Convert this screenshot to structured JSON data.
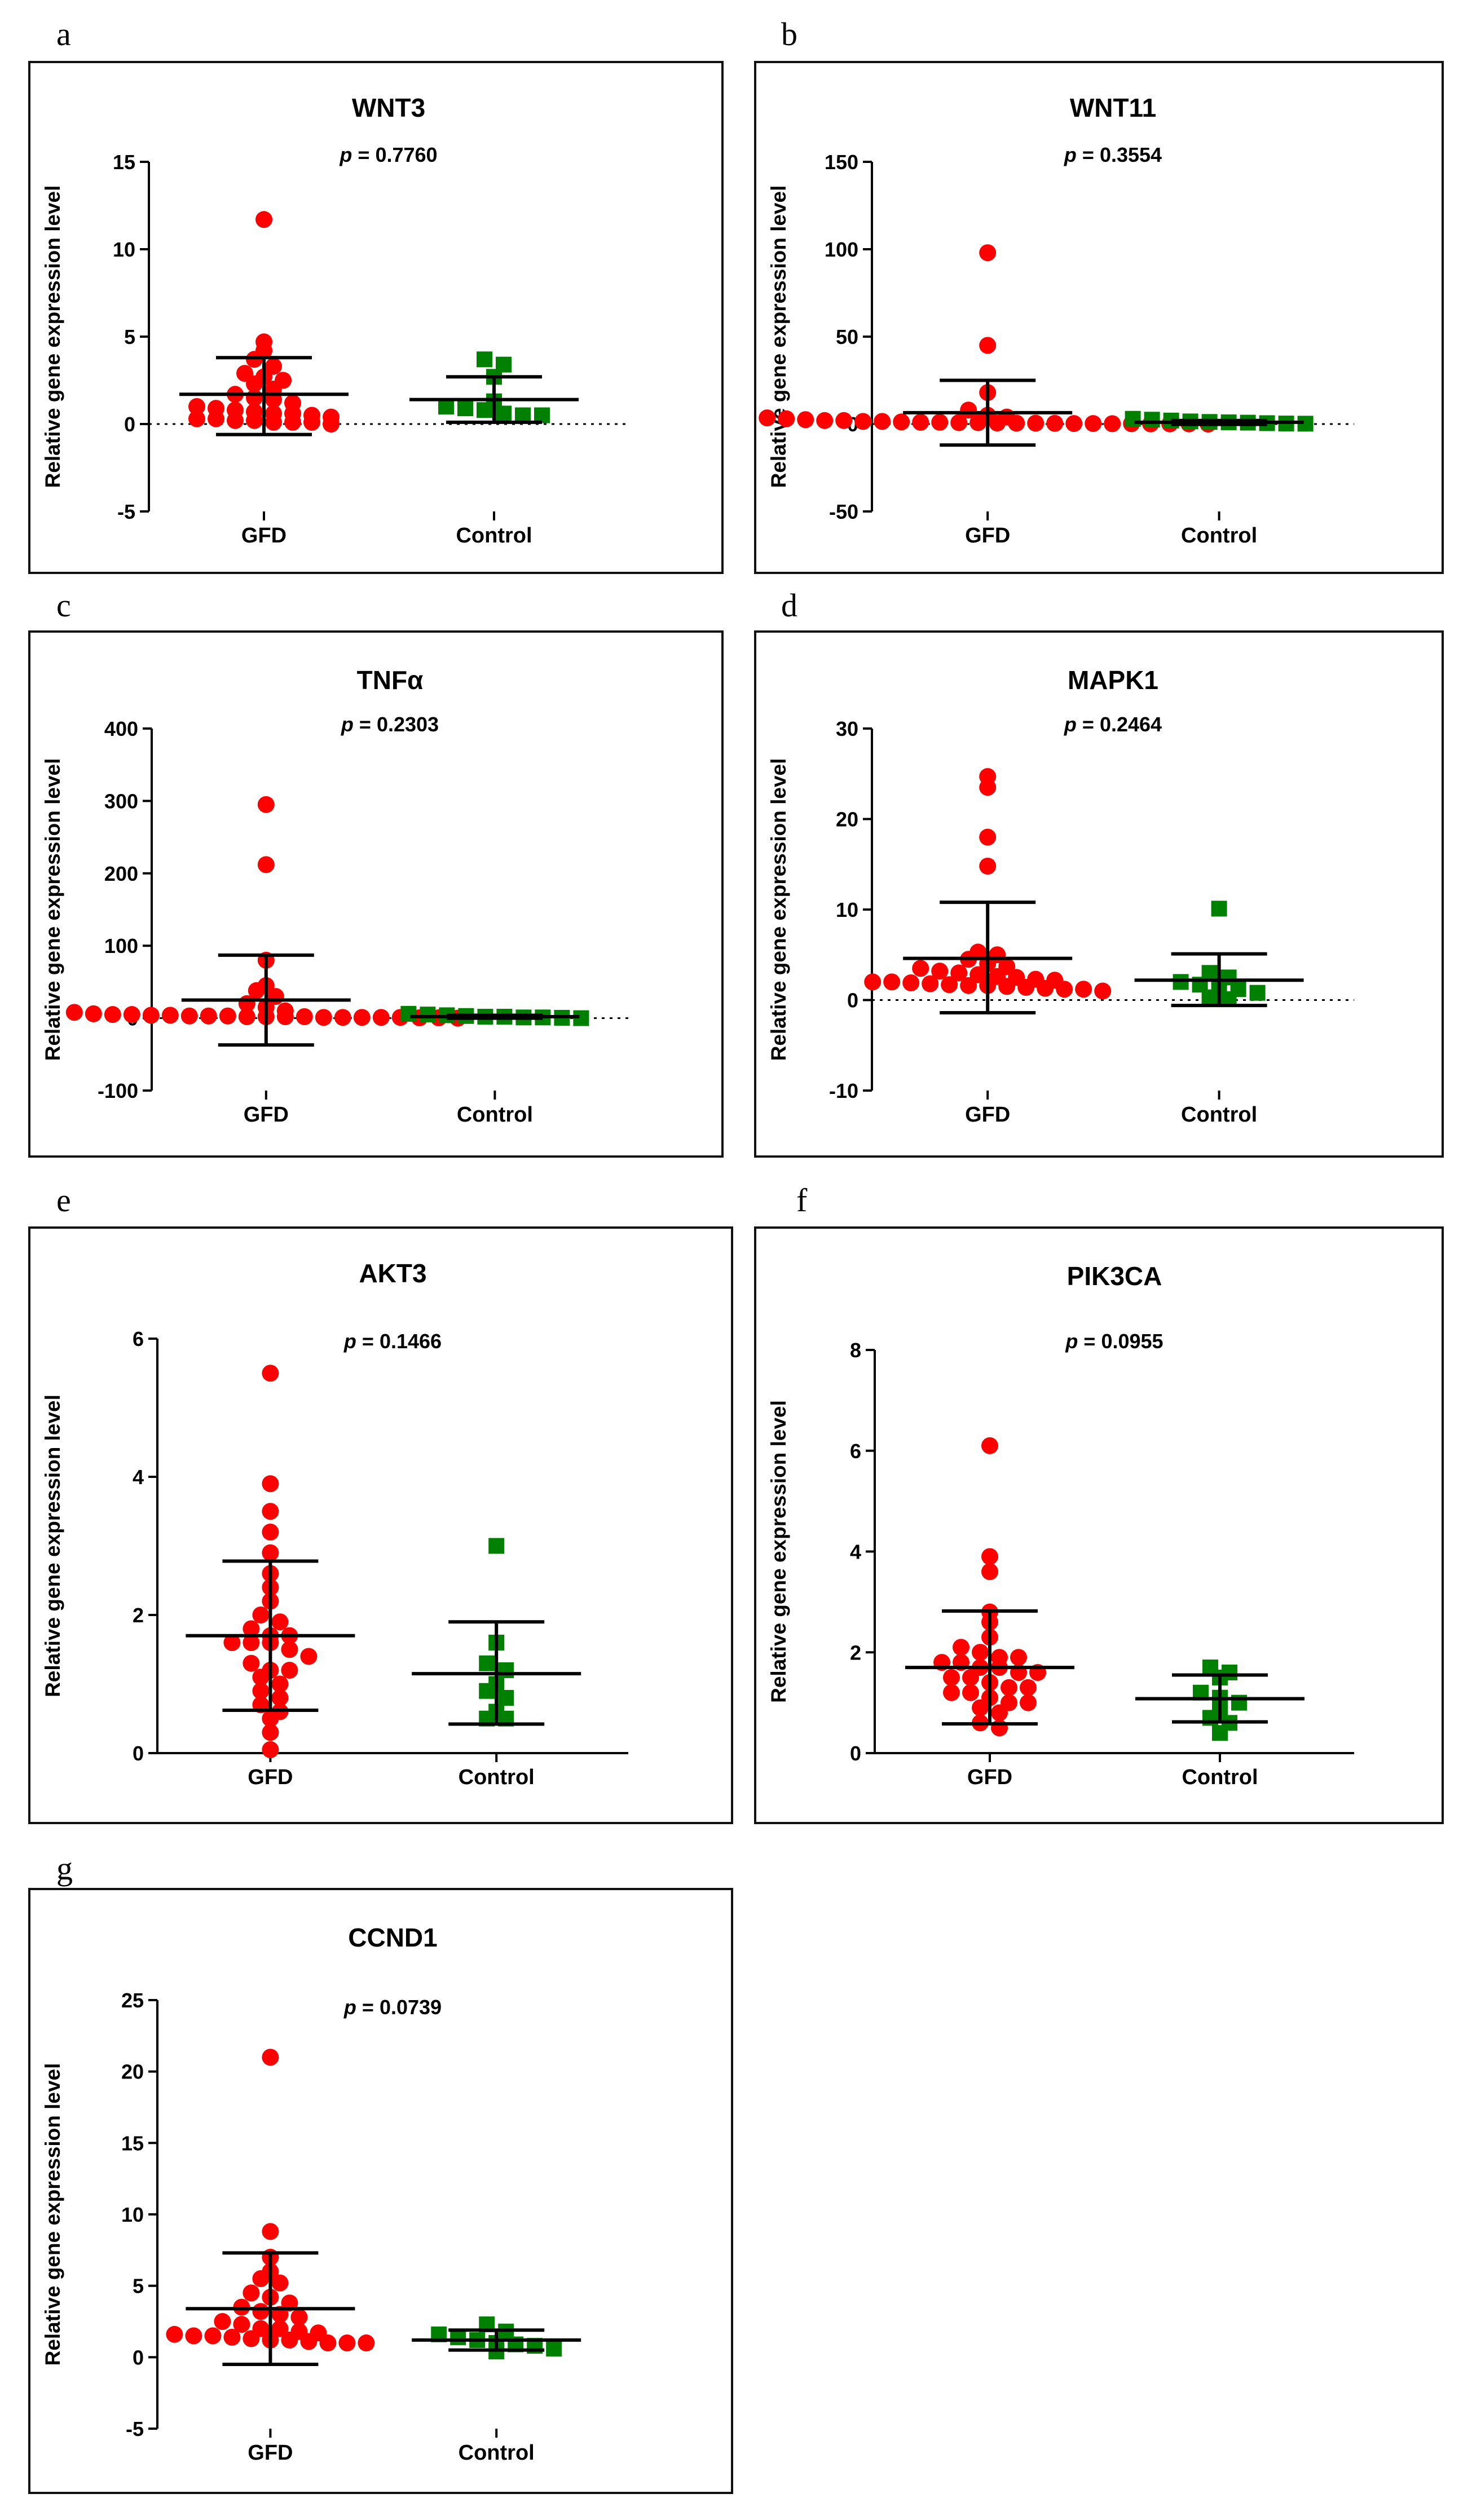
{
  "figure": {
    "group_colors": {
      "GFD": "#ff0000",
      "Control": "#008000"
    },
    "mean_line_color": "#000000"
  },
  "chart_data": [
    {
      "panel": "a",
      "type": "scatter",
      "title": "WNT3",
      "p_value": "0.7760",
      "ylabel": "Relative gene expression level",
      "xlabel": "",
      "categories": [
        "GFD",
        "Control"
      ],
      "ylim": [
        -5,
        15
      ],
      "yticks": [
        -5,
        0,
        5,
        10,
        15
      ],
      "zero_line": true,
      "series": [
        {
          "name": "GFD",
          "marker": "circle",
          "mean": 1.7,
          "sd_low": -0.6,
          "sd_high": 3.8,
          "values": [
            11.7,
            4.7,
            4.2,
            3.7,
            3.3,
            2.9,
            2.7,
            2.5,
            2.3,
            2.0,
            1.7,
            1.5,
            1.4,
            1.2,
            1.0,
            0.9,
            0.8,
            0.7,
            0.6,
            0.6,
            0.5,
            0.4,
            0.3,
            0.3,
            0.2,
            0.2,
            0.1,
            0.1,
            0.1,
            0.0
          ]
        },
        {
          "name": "Control",
          "marker": "square",
          "mean": 1.4,
          "sd_low": 0.1,
          "sd_high": 2.7,
          "values": [
            3.7,
            3.4,
            2.7,
            1.3,
            1.0,
            0.9,
            0.8,
            0.6,
            0.5,
            0.5
          ]
        }
      ]
    },
    {
      "panel": "b",
      "type": "scatter",
      "title": "WNT11",
      "p_value": "0.3554",
      "ylabel": "Relative gene expression level",
      "xlabel": "",
      "categories": [
        "GFD",
        "Control"
      ],
      "ylim": [
        -50,
        150
      ],
      "yticks": [
        -50,
        0,
        50,
        100,
        150
      ],
      "zero_line": true,
      "series": [
        {
          "name": "GFD",
          "marker": "circle",
          "mean": 6.5,
          "sd_low": -12,
          "sd_high": 25,
          "values": [
            98,
            45,
            18,
            8,
            5,
            4,
            3.5,
            3,
            2.5,
            2,
            2,
            1.5,
            1.5,
            1.2,
            1,
            1,
            0.8,
            0.8,
            0.6,
            0.5,
            0.5,
            0.4,
            0.3,
            0.3,
            0.2,
            0.2,
            0.1,
            0.1,
            0.1,
            0
          ]
        },
        {
          "name": "Control",
          "marker": "square",
          "mean": 1.0,
          "sd_low": -0.2,
          "sd_high": 2.0,
          "values": [
            3,
            2.5,
            2,
            1.5,
            1.2,
            1,
            0.8,
            0.5,
            0.3,
            0.2
          ]
        }
      ]
    },
    {
      "panel": "c",
      "type": "scatter",
      "title": "TNFα",
      "p_value": "0.2303",
      "ylabel": "Relative gene expression level",
      "xlabel": "",
      "categories": [
        "GFD",
        "Control"
      ],
      "ylim": [
        -100,
        400
      ],
      "yticks": [
        -100,
        0,
        100,
        200,
        300,
        400
      ],
      "zero_line": true,
      "series": [
        {
          "name": "GFD",
          "marker": "circle",
          "mean": 25,
          "sd_low": -37,
          "sd_high": 87,
          "values": [
            295,
            212,
            80,
            45,
            38,
            30,
            20,
            15,
            10,
            8,
            6,
            5,
            5,
            4,
            4,
            3,
            3,
            3,
            2,
            2,
            2,
            2,
            1,
            1,
            1,
            1,
            1,
            0.5,
            0.5,
            0
          ]
        },
        {
          "name": "Control",
          "marker": "square",
          "mean": 2,
          "sd_low": 0,
          "sd_high": 4,
          "values": [
            6,
            5,
            4,
            3,
            2,
            2,
            1,
            1,
            0.5,
            0
          ]
        }
      ]
    },
    {
      "panel": "d",
      "type": "scatter",
      "title": "MAPK1",
      "p_value": "0.2464",
      "ylabel": "Relative gene expression level",
      "xlabel": "",
      "categories": [
        "GFD",
        "Control"
      ],
      "ylim": [
        -10,
        30
      ],
      "yticks": [
        -10,
        0,
        10,
        20,
        30
      ],
      "zero_line": true,
      "series": [
        {
          "name": "GFD",
          "marker": "circle",
          "mean": 4.6,
          "sd_low": -1.4,
          "sd_high": 10.8,
          "values": [
            24.7,
            23.5,
            18.0,
            14.8,
            5.3,
            5.0,
            4.5,
            4.0,
            3.7,
            3.5,
            3.2,
            3.0,
            2.8,
            2.6,
            2.5,
            2.3,
            2.2,
            2.0,
            2.0,
            1.9,
            1.8,
            1.7,
            1.6,
            1.6,
            1.5,
            1.4,
            1.3,
            1.2,
            1.2,
            1.0
          ]
        },
        {
          "name": "Control",
          "marker": "square",
          "mean": 2.2,
          "sd_low": -0.6,
          "sd_high": 5.1,
          "values": [
            10.1,
            3.0,
            2.5,
            2.0,
            1.7,
            1.5,
            1.2,
            0.8,
            0.3,
            0.1
          ]
        }
      ]
    },
    {
      "panel": "e",
      "type": "scatter",
      "title": "AKT3",
      "p_value": "0.1466",
      "ylabel": "Relative gene expression level",
      "xlabel": "",
      "categories": [
        "GFD",
        "Control"
      ],
      "ylim": [
        0,
        6
      ],
      "yticks": [
        0,
        2,
        4,
        6
      ],
      "zero_line": false,
      "series": [
        {
          "name": "GFD",
          "marker": "circle",
          "mean": 1.7,
          "sd_low": 0.62,
          "sd_high": 2.78,
          "values": [
            5.5,
            3.9,
            3.5,
            3.2,
            2.9,
            2.6,
            2.4,
            2.2,
            2.0,
            1.9,
            1.8,
            1.7,
            1.7,
            1.6,
            1.6,
            1.6,
            1.5,
            1.4,
            1.3,
            1.2,
            1.2,
            1.1,
            1.0,
            0.9,
            0.8,
            0.7,
            0.6,
            0.5,
            0.3,
            0.05
          ]
        },
        {
          "name": "Control",
          "marker": "square",
          "mean": 1.15,
          "sd_low": 0.42,
          "sd_high": 1.9,
          "values": [
            3.0,
            1.6,
            1.3,
            1.2,
            1.0,
            0.9,
            0.8,
            0.6,
            0.5,
            0.5
          ]
        }
      ]
    },
    {
      "panel": "f",
      "type": "scatter",
      "title": "PIK3CA",
      "p_value": "0.0955",
      "ylabel": "Relative gene expression level",
      "xlabel": "",
      "categories": [
        "GFD",
        "Control"
      ],
      "ylim": [
        0,
        8
      ],
      "yticks": [
        0,
        2,
        4,
        6,
        8
      ],
      "zero_line": false,
      "series": [
        {
          "name": "GFD",
          "marker": "circle",
          "mean": 1.7,
          "sd_low": 0.58,
          "sd_high": 2.82,
          "values": [
            6.1,
            3.9,
            3.6,
            2.8,
            2.6,
            2.3,
            2.1,
            2.0,
            1.9,
            1.9,
            1.8,
            1.8,
            1.7,
            1.7,
            1.6,
            1.6,
            1.5,
            1.5,
            1.4,
            1.3,
            1.3,
            1.2,
            1.2,
            1.1,
            1.0,
            1.0,
            0.9,
            0.8,
            0.6,
            0.5
          ]
        },
        {
          "name": "Control",
          "marker": "square",
          "mean": 1.08,
          "sd_low": 0.62,
          "sd_high": 1.55,
          "values": [
            1.7,
            1.6,
            1.5,
            1.2,
            1.1,
            1.0,
            0.8,
            0.7,
            0.6,
            0.4
          ]
        }
      ]
    },
    {
      "panel": "g",
      "type": "scatter",
      "title": "CCND1",
      "p_value": "0.0739",
      "ylabel": "Relative gene expression level",
      "xlabel": "",
      "categories": [
        "GFD",
        "Control"
      ],
      "ylim": [
        -5,
        25
      ],
      "yticks": [
        -5,
        0,
        5,
        10,
        15,
        20,
        25
      ],
      "zero_line": false,
      "series": [
        {
          "name": "GFD",
          "marker": "circle",
          "mean": 3.4,
          "sd_low": -0.5,
          "sd_high": 7.3,
          "values": [
            21.0,
            8.8,
            7.0,
            6.0,
            5.5,
            5.2,
            4.5,
            4.2,
            3.8,
            3.5,
            3.2,
            3.0,
            2.8,
            2.5,
            2.3,
            2.0,
            2.0,
            1.8,
            1.7,
            1.6,
            1.5,
            1.5,
            1.4,
            1.3,
            1.2,
            1.2,
            1.1,
            1.0,
            1.0,
            1.0
          ]
        },
        {
          "name": "Control",
          "marker": "square",
          "mean": 1.2,
          "sd_low": 0.5,
          "sd_high": 1.9,
          "values": [
            2.3,
            1.8,
            1.6,
            1.4,
            1.2,
            1.0,
            0.9,
            0.8,
            0.6,
            0.4
          ]
        }
      ]
    }
  ]
}
